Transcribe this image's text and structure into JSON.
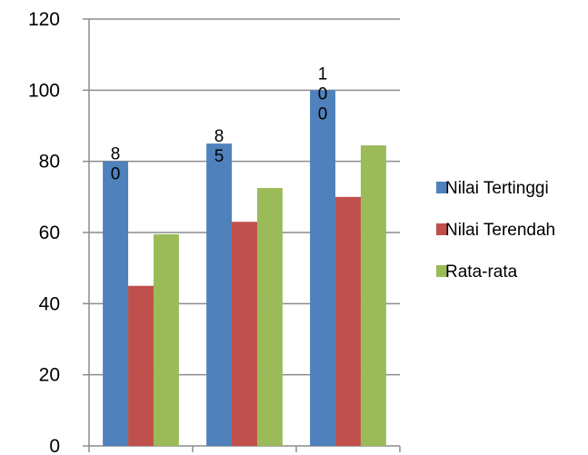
{
  "chart_data": {
    "type": "bar",
    "title": "",
    "xlabel": "",
    "ylabel": "",
    "ylim": [
      0,
      120
    ],
    "yticks": [
      "0",
      "20",
      "40",
      "60",
      "80",
      "100",
      "120"
    ],
    "grid": true,
    "legend_position": "right",
    "categories": [
      "",
      "",
      ""
    ],
    "series": [
      {
        "name": "Nilai Tertinggi",
        "color": "#4F81BD",
        "values": [
          80,
          85,
          100
        ],
        "data_labels": [
          "80",
          "85",
          "100"
        ]
      },
      {
        "name": "Nilai Terendah",
        "color": "#C0504D",
        "values": [
          45,
          63,
          70
        ]
      },
      {
        "name": "Rata-rata",
        "color": "#9BBB59",
        "values": [
          59.5,
          72.5,
          84.5
        ]
      }
    ]
  }
}
